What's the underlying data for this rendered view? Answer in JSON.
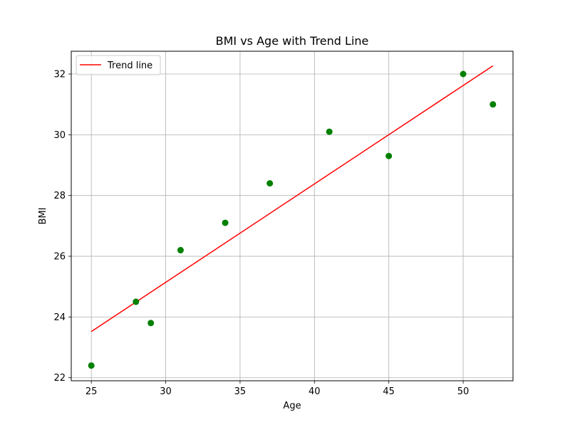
{
  "chart_data": {
    "type": "scatter",
    "title": "BMI vs Age with Trend Line",
    "xlabel": "Age",
    "ylabel": "BMI",
    "xlim": [
      23.65,
      53.35
    ],
    "ylim": [
      21.9,
      32.75
    ],
    "xticks": [
      25,
      30,
      35,
      40,
      45,
      50
    ],
    "yticks": [
      22,
      24,
      26,
      28,
      30,
      32
    ],
    "grid": true,
    "legend_position": "top-left",
    "series": [
      {
        "type": "scatter",
        "color": "#008000",
        "x": [
          25,
          28,
          29,
          31,
          34,
          37,
          41,
          45,
          50,
          52
        ],
        "y": [
          22.4,
          24.5,
          23.8,
          26.2,
          27.1,
          28.4,
          30.1,
          29.3,
          32.0,
          31.0
        ]
      },
      {
        "type": "line",
        "name": "Trend line",
        "color": "#ff0000",
        "x": [
          25,
          52
        ],
        "y": [
          23.52,
          32.27
        ]
      }
    ]
  }
}
